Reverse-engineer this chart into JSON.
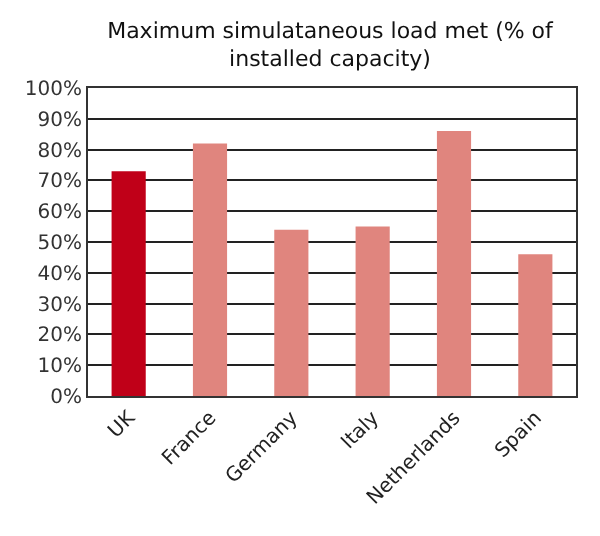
{
  "chart_data": {
    "type": "bar",
    "title": "Maximum simulataneous load met (% of\ninstalled capacity)",
    "categories": [
      "UK",
      "France",
      "Germany",
      "Italy",
      "Netherlands",
      "Spain"
    ],
    "values": [
      73,
      82,
      54,
      55,
      86,
      46
    ],
    "colors": [
      "#c00018",
      "#e0857e",
      "#e0857e",
      "#e0857e",
      "#e0857e",
      "#e0857e"
    ],
    "ylim": [
      0,
      100
    ],
    "yticks": [
      {
        "value": 0,
        "label": "0%"
      },
      {
        "value": 10,
        "label": "10%"
      },
      {
        "value": 20,
        "label": "20%"
      },
      {
        "value": 30,
        "label": "30%"
      },
      {
        "value": 40,
        "label": "40%"
      },
      {
        "value": 50,
        "label": "50%"
      },
      {
        "value": 60,
        "label": "60%"
      },
      {
        "value": 70,
        "label": "70%"
      },
      {
        "value": 80,
        "label": "80%"
      },
      {
        "value": 90,
        "label": "90%"
      },
      {
        "value": 100,
        "label": "100%"
      }
    ],
    "grid": true
  }
}
